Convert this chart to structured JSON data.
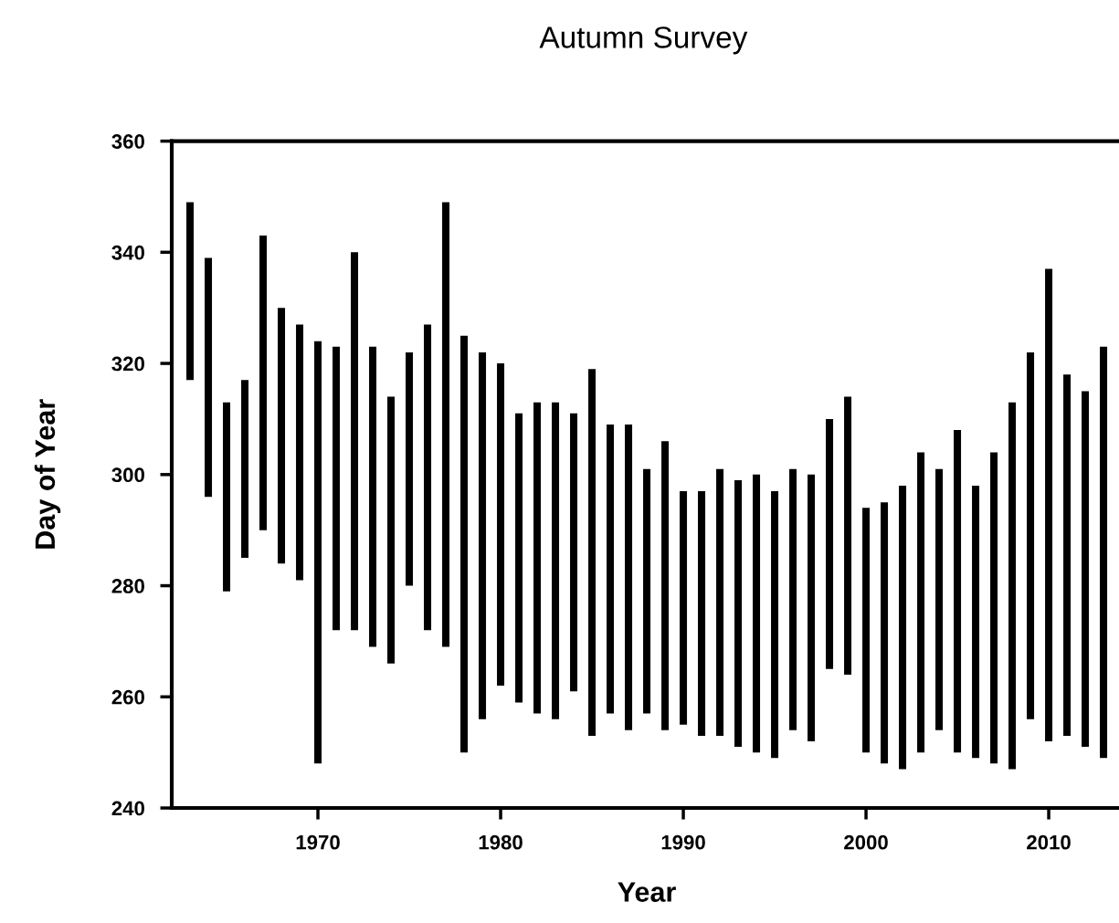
{
  "chart_data": {
    "type": "bar",
    "title": "Autumn Survey",
    "xlabel": "Year",
    "ylabel": "Day of Year",
    "x": [
      1963,
      1964,
      1965,
      1966,
      1967,
      1968,
      1969,
      1970,
      1971,
      1972,
      1973,
      1974,
      1975,
      1976,
      1977,
      1978,
      1979,
      1980,
      1981,
      1982,
      1983,
      1984,
      1985,
      1986,
      1987,
      1988,
      1989,
      1990,
      1991,
      1992,
      1993,
      1994,
      1995,
      1996,
      1997,
      1998,
      1999,
      2000,
      2001,
      2002,
      2003,
      2004,
      2005,
      2006,
      2007,
      2008,
      2009,
      2010,
      2011,
      2012,
      2013
    ],
    "base": [
      317,
      296,
      279,
      285,
      290,
      284,
      281,
      248,
      272,
      272,
      269,
      266,
      280,
      272,
      269,
      250,
      256,
      262,
      259,
      257,
      256,
      261,
      253,
      257,
      254,
      257,
      254,
      255,
      253,
      253,
      251,
      250,
      249,
      254,
      252,
      265,
      264,
      250,
      248,
      247,
      250,
      254,
      250,
      249,
      248,
      247,
      256,
      252,
      253,
      251,
      249
    ],
    "values": [
      32,
      43,
      34,
      32,
      53,
      46,
      46,
      76,
      51,
      68,
      54,
      48,
      42,
      55,
      80,
      75,
      66,
      58,
      52,
      56,
      57,
      50,
      66,
      52,
      55,
      44,
      52,
      42,
      44,
      48,
      48,
      50,
      48,
      47,
      48,
      45,
      50,
      44,
      47,
      51,
      54,
      47,
      58,
      49,
      56,
      66,
      66,
      85,
      65,
      64,
      74
    ],
    "color": "#000000",
    "xlim": [
      1962,
      2014
    ],
    "xticks": [
      1970,
      1980,
      1990,
      2000,
      2010
    ],
    "ylim": [
      240,
      360
    ],
    "yticks": [
      240,
      260,
      280,
      300,
      320,
      340,
      360
    ],
    "grid": false,
    "legend": false
  }
}
